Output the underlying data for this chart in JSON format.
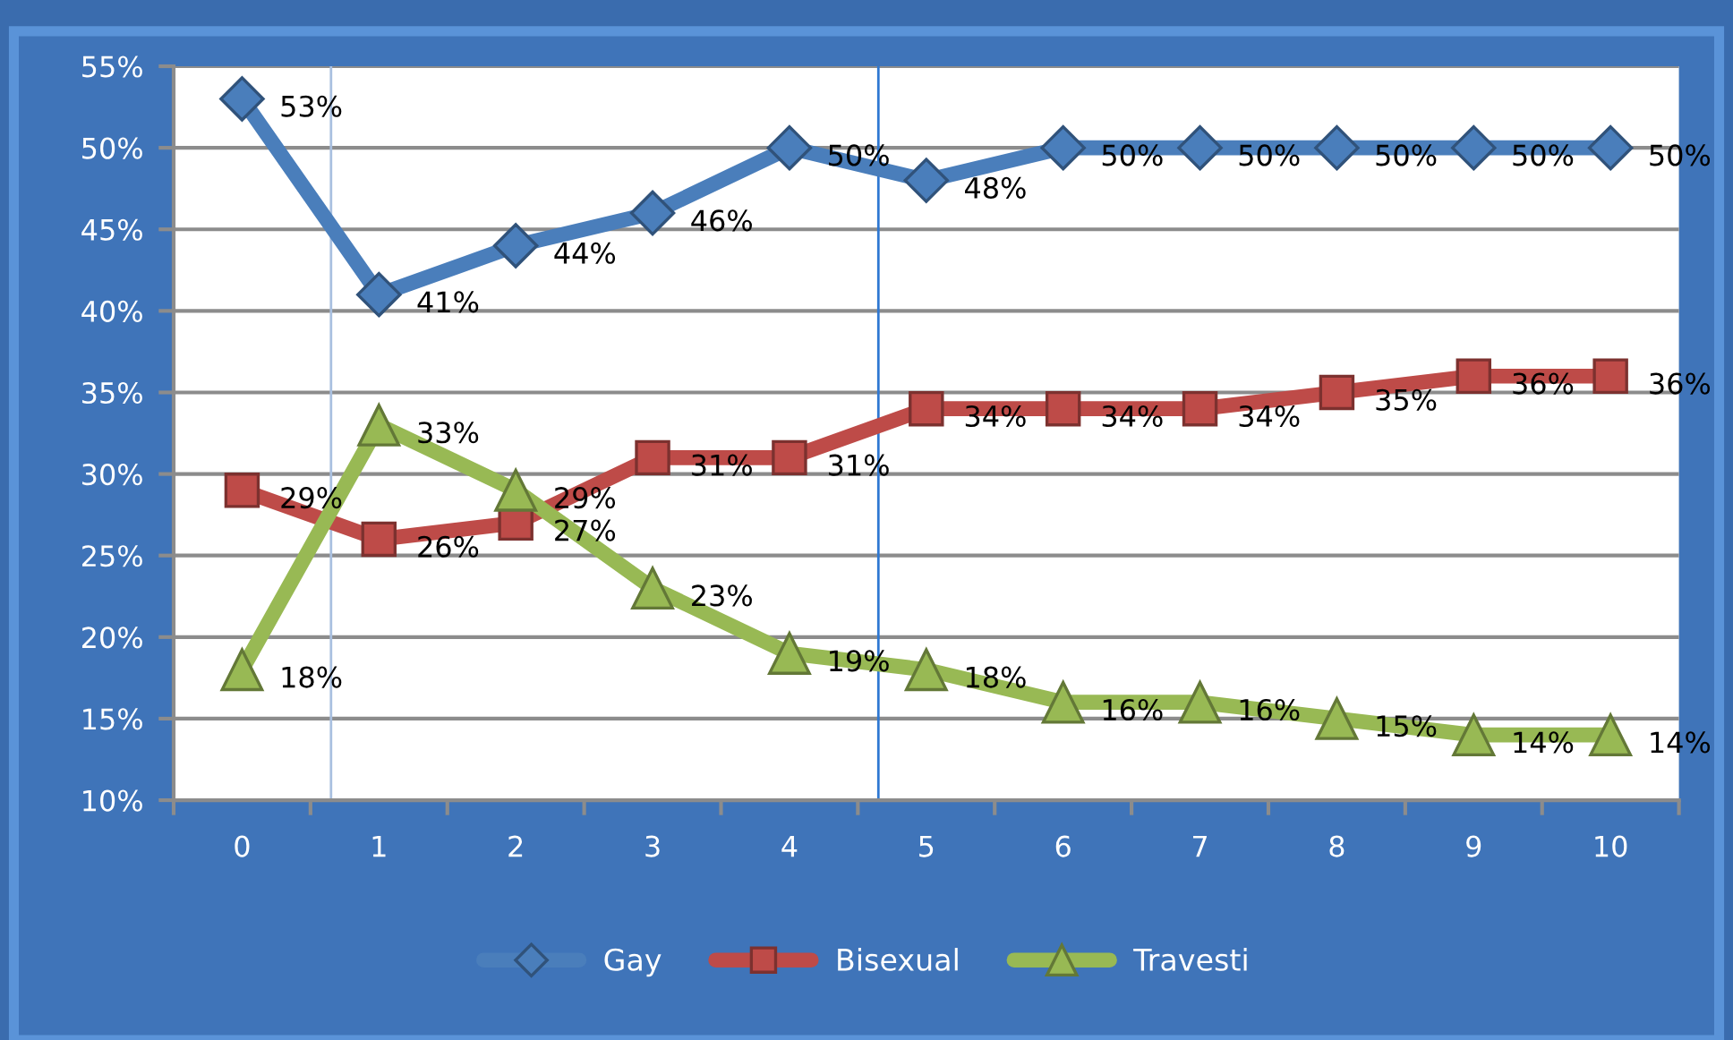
{
  "chart_data": {
    "type": "line",
    "x": [
      0,
      1,
      2,
      3,
      4,
      5,
      6,
      7,
      8,
      9,
      10
    ],
    "xlim": [
      -0.5,
      10.5
    ],
    "xticks": [
      0,
      1,
      2,
      3,
      4,
      5,
      6,
      7,
      8,
      9,
      10,
      {
        "value": -0.5,
        "label": null
      },
      {
        "value": 0.5,
        "label": null
      },
      {
        "value": 1.5,
        "label": null
      },
      {
        "value": 2.5,
        "label": null
      },
      {
        "value": 3.5,
        "label": null
      },
      {
        "value": 4.5,
        "label": null
      },
      {
        "value": 5.5,
        "label": null
      },
      {
        "value": 6.5,
        "label": null
      },
      {
        "value": 7.5,
        "label": null
      },
      {
        "value": 8.5,
        "label": null
      },
      {
        "value": 9.5,
        "label": null
      },
      {
        "value": 10.5,
        "label": null
      }
    ],
    "ylim": [
      10,
      55
    ],
    "yticks": [
      {
        "value": 10,
        "label": "10%"
      },
      {
        "value": 15,
        "label": "15%"
      },
      {
        "value": 20,
        "label": "20%"
      },
      {
        "value": 25,
        "label": "25%"
      },
      {
        "value": 30,
        "label": "30%"
      },
      {
        "value": 35,
        "label": "35%"
      },
      {
        "value": 40,
        "label": "40%"
      },
      {
        "value": 45,
        "label": "45%"
      },
      {
        "value": 50,
        "label": "50%"
      },
      {
        "value": 55,
        "label": "55%"
      }
    ],
    "grid": "y",
    "legend": "bottom",
    "ref_lines": [
      {
        "axis": "x",
        "value": 0.65,
        "color": "#a9c0e0"
      },
      {
        "axis": "x",
        "value": 4.65,
        "color": "#2f78d2"
      }
    ],
    "series": [
      {
        "name": "Gay",
        "color": "#4a7ebb",
        "marker": "diamond",
        "values": [
          53,
          41,
          44,
          46,
          50,
          48,
          50,
          50,
          50,
          50,
          50
        ],
        "value_labels": [
          "53%",
          "41%",
          "44%",
          "46%",
          "50%",
          "48%",
          "50%",
          "50%",
          "50%",
          "50%",
          "50%"
        ]
      },
      {
        "name": "Bisexual",
        "color": "#be4b48",
        "marker": "square",
        "values": [
          29,
          26,
          27,
          31,
          31,
          34,
          34,
          34,
          35,
          36,
          36
        ],
        "value_labels": [
          "29%",
          "26%",
          "27%",
          "31%",
          "31%",
          "34%",
          "34%",
          "34%",
          "35%",
          "36%",
          "36%"
        ]
      },
      {
        "name": "Travesti",
        "color": "#98b954",
        "marker": "triangle",
        "values": [
          18,
          33,
          29,
          23,
          19,
          18,
          16,
          16,
          15,
          14,
          14
        ],
        "value_labels": [
          "18%",
          "33%",
          "29%",
          "23%",
          "19%",
          "18%",
          "16%",
          "16%",
          "15%",
          "14%",
          "14%"
        ]
      }
    ]
  }
}
